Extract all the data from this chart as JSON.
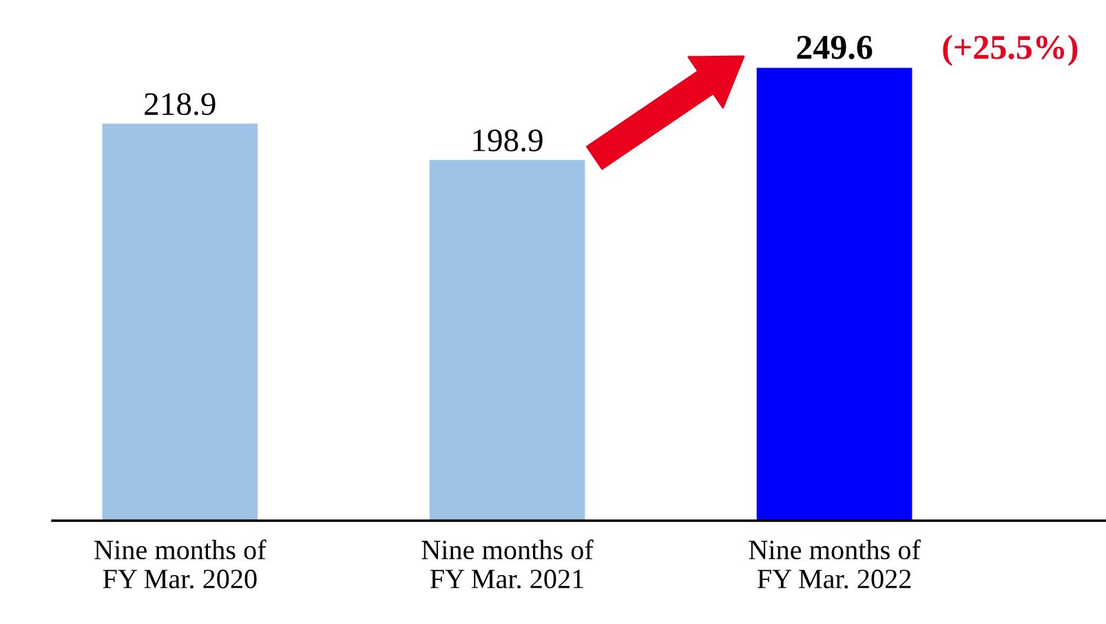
{
  "chart_data": {
    "type": "bar",
    "categories": [
      "Nine months of\nFY Mar. 2020",
      "Nine months of\nFY Mar. 2021",
      "Nine months of\nFY Mar. 2022"
    ],
    "values": [
      218.9,
      198.9,
      249.6
    ],
    "colors": [
      "#9dc3e6",
      "#9dc3e6",
      "#0000ff"
    ],
    "data_labels": true,
    "annotations": [
      "(+25.5%)"
    ],
    "grid": false,
    "legend": false
  }
}
